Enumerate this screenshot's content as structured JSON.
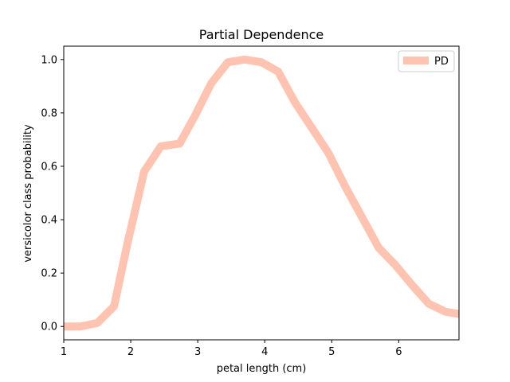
{
  "chart_data": {
    "type": "line",
    "title": "Partial Dependence",
    "xlabel": "petal length (cm)",
    "ylabel": "versicolor class probability",
    "xlim": [
      1.0,
      6.9
    ],
    "ylim": [
      -0.05,
      1.05
    ],
    "xticks": [
      1,
      2,
      3,
      4,
      5,
      6
    ],
    "xtick_labels": [
      "1",
      "2",
      "3",
      "4",
      "5",
      "6"
    ],
    "yticks": [
      0.0,
      0.2,
      0.4,
      0.6,
      0.8,
      1.0
    ],
    "ytick_labels": [
      "0.0",
      "0.2",
      "0.4",
      "0.6",
      "0.8",
      "1.0"
    ],
    "grid": false,
    "legend_position": "upper right",
    "series": [
      {
        "name": "PD",
        "color": "#ffc4b1",
        "x": [
          1.0,
          1.25,
          1.5,
          1.75,
          1.95,
          2.2,
          2.45,
          2.73,
          2.96,
          3.2,
          3.45,
          3.7,
          3.95,
          4.2,
          4.45,
          4.7,
          4.95,
          5.2,
          5.45,
          5.7,
          5.95,
          6.2,
          6.45,
          6.7,
          6.9
        ],
        "y": [
          0.0,
          0.0,
          0.013,
          0.075,
          0.31,
          0.58,
          0.675,
          0.685,
          0.79,
          0.91,
          0.99,
          1.0,
          0.99,
          0.955,
          0.84,
          0.745,
          0.65,
          0.525,
          0.41,
          0.295,
          0.23,
          0.155,
          0.085,
          0.055,
          0.047
        ]
      }
    ]
  }
}
